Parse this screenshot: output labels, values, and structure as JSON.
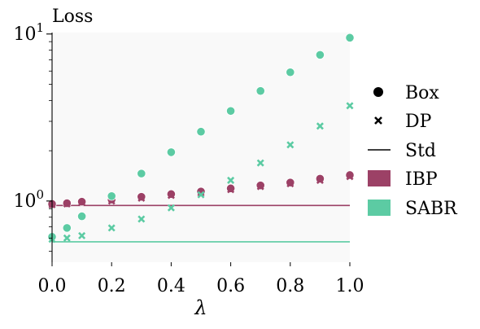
{
  "chart_data": {
    "type": "scatter",
    "title": "Loss",
    "xlabel": "λ",
    "ylabel": "",
    "xlim": [
      0.0,
      1.0
    ],
    "ylim": [
      0.43,
      10.2
    ],
    "yscale": "log",
    "grid": false,
    "background": "#f9f9f9",
    "x_ticks": [
      0.0,
      0.2,
      0.4,
      0.6,
      0.8,
      1.0
    ],
    "x_tick_labels": [
      "0.0",
      "0.2",
      "0.4",
      "0.6",
      "0.8",
      "1.0"
    ],
    "y_tick_labels": [
      {
        "value": 1,
        "base": "10",
        "exp": "0"
      },
      {
        "value": 10,
        "base": "10",
        "exp": "1"
      }
    ],
    "legend_position": "right",
    "colors": {
      "IBP": "#9c4166",
      "SABR": "#5ccba3"
    },
    "series": [
      {
        "name": "IBP",
        "marker": "Box",
        "x": [
          0.0,
          0.05,
          0.1,
          0.2,
          0.3,
          0.4,
          0.5,
          0.6,
          0.7,
          0.8,
          0.9,
          1.0
        ],
        "y": [
          0.96,
          0.97,
          0.99,
          1.02,
          1.06,
          1.1,
          1.14,
          1.19,
          1.24,
          1.29,
          1.36,
          1.43
        ]
      },
      {
        "name": "IBP",
        "marker": "DP",
        "x": [
          0.0,
          0.05,
          0.1,
          0.2,
          0.3,
          0.4,
          0.5,
          0.6,
          0.7,
          0.8,
          0.9,
          1.0
        ],
        "y": [
          0.95,
          0.96,
          0.98,
          1.0,
          1.04,
          1.08,
          1.12,
          1.17,
          1.22,
          1.27,
          1.33,
          1.4
        ]
      },
      {
        "name": "SABR",
        "marker": "Box",
        "x": [
          0.0,
          0.05,
          0.1,
          0.2,
          0.3,
          0.4,
          0.5,
          0.6,
          0.7,
          0.8,
          0.9,
          1.0
        ],
        "y": [
          0.61,
          0.69,
          0.81,
          1.07,
          1.46,
          1.96,
          2.6,
          3.46,
          4.56,
          5.9,
          7.5,
          9.5
        ]
      },
      {
        "name": "SABR",
        "marker": "DP",
        "x": [
          0.0,
          0.05,
          0.1,
          0.2,
          0.3,
          0.4,
          0.5,
          0.6,
          0.7,
          0.8,
          0.9,
          1.0
        ],
        "y": [
          0.59,
          0.6,
          0.62,
          0.69,
          0.78,
          0.91,
          1.09,
          1.33,
          1.69,
          2.17,
          2.81,
          3.72
        ]
      }
    ],
    "std_lines": [
      {
        "name": "IBP",
        "y": 0.94
      },
      {
        "name": "SABR",
        "y": 0.57
      }
    ],
    "legend": [
      {
        "label": "Box",
        "kind": "dot"
      },
      {
        "label": "DP",
        "kind": "cross"
      },
      {
        "label": "Std",
        "kind": "line"
      },
      {
        "label": "IBP",
        "kind": "patch",
        "color": "#9c4166"
      },
      {
        "label": "SABR",
        "kind": "patch",
        "color": "#5ccba3"
      }
    ]
  }
}
